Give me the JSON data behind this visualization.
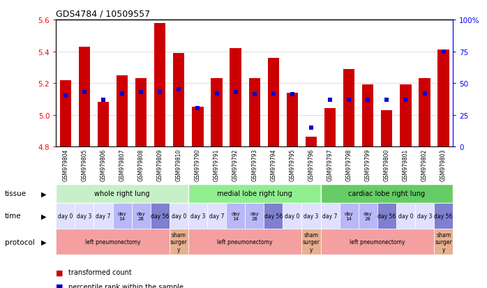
{
  "title": "GDS4784 / 10509557",
  "samples": [
    "GSM979804",
    "GSM979805",
    "GSM979806",
    "GSM979807",
    "GSM979808",
    "GSM979809",
    "GSM979810",
    "GSM979790",
    "GSM979791",
    "GSM979792",
    "GSM979793",
    "GSM979794",
    "GSM979795",
    "GSM979796",
    "GSM979797",
    "GSM979798",
    "GSM979799",
    "GSM979800",
    "GSM979801",
    "GSM979802",
    "GSM979803"
  ],
  "bar_values": [
    5.22,
    5.43,
    5.08,
    5.25,
    5.23,
    5.58,
    5.39,
    5.05,
    5.23,
    5.42,
    5.23,
    5.36,
    5.14,
    4.86,
    5.04,
    5.29,
    5.19,
    5.03,
    5.19,
    5.23,
    5.41
  ],
  "percentile_ranks": [
    40,
    43,
    37,
    42,
    43,
    43,
    45,
    30,
    42,
    43,
    41,
    42,
    41,
    15,
    37,
    37,
    37,
    37,
    37,
    42,
    75
  ],
  "ylim": [
    4.8,
    5.6
  ],
  "yticks": [
    4.8,
    5.0,
    5.2,
    5.4,
    5.6
  ],
  "bar_color": "#cc0000",
  "percentile_color": "#0000cc",
  "bg_color": "#ffffff",
  "tissue_groups": [
    {
      "label": "whole right lung",
      "start": 0,
      "end": 7,
      "color": "#c8f0c8"
    },
    {
      "label": "medial lobe right lung",
      "start": 7,
      "end": 14,
      "color": "#90ee90"
    },
    {
      "label": "cardiac lobe right lung",
      "start": 14,
      "end": 21,
      "color": "#66cc66"
    }
  ],
  "time_labels_full": [
    "day 0",
    "day 3",
    "day 7",
    "day\n14",
    "day\n28",
    "day 56",
    "day 0",
    "day 3",
    "day 7",
    "day\n14",
    "day\n28",
    "day 56",
    "day 0",
    "day 3",
    "day 7",
    "day\n14",
    "day\n28",
    "day 56",
    "day 0",
    "day 3",
    "day 56"
  ],
  "time_colors_full": [
    "#e0e0ff",
    "#e0e0ff",
    "#e0e0ff",
    "#b8b8f8",
    "#b8b8f8",
    "#8080d0",
    "#e0e0ff",
    "#e0e0ff",
    "#e0e0ff",
    "#b8b8f8",
    "#b8b8f8",
    "#8080d0",
    "#e0e0ff",
    "#e0e0ff",
    "#e0e0ff",
    "#b8b8f8",
    "#b8b8f8",
    "#8080d0",
    "#e0e0ff",
    "#e0e0ff",
    "#8080d0"
  ],
  "protocol_groups": [
    {
      "label": "left pneumonectomy",
      "start": 0,
      "end": 6,
      "color": "#f4a0a0"
    },
    {
      "label": "sham\nsurger\ny",
      "start": 6,
      "end": 7,
      "color": "#e8b090"
    },
    {
      "label": "left pneumonectomy",
      "start": 7,
      "end": 13,
      "color": "#f4a0a0"
    },
    {
      "label": "sham\nsurger\ny",
      "start": 13,
      "end": 14,
      "color": "#e8b090"
    },
    {
      "label": "left pneumonectomy",
      "start": 14,
      "end": 20,
      "color": "#f4a0a0"
    },
    {
      "label": "sham\nsurger\ny",
      "start": 20,
      "end": 21,
      "color": "#e8b090"
    }
  ],
  "right_yticks": [
    0,
    25,
    50,
    75,
    100
  ],
  "right_ylabels": [
    "0",
    "25",
    "50",
    "75",
    "100%"
  ]
}
